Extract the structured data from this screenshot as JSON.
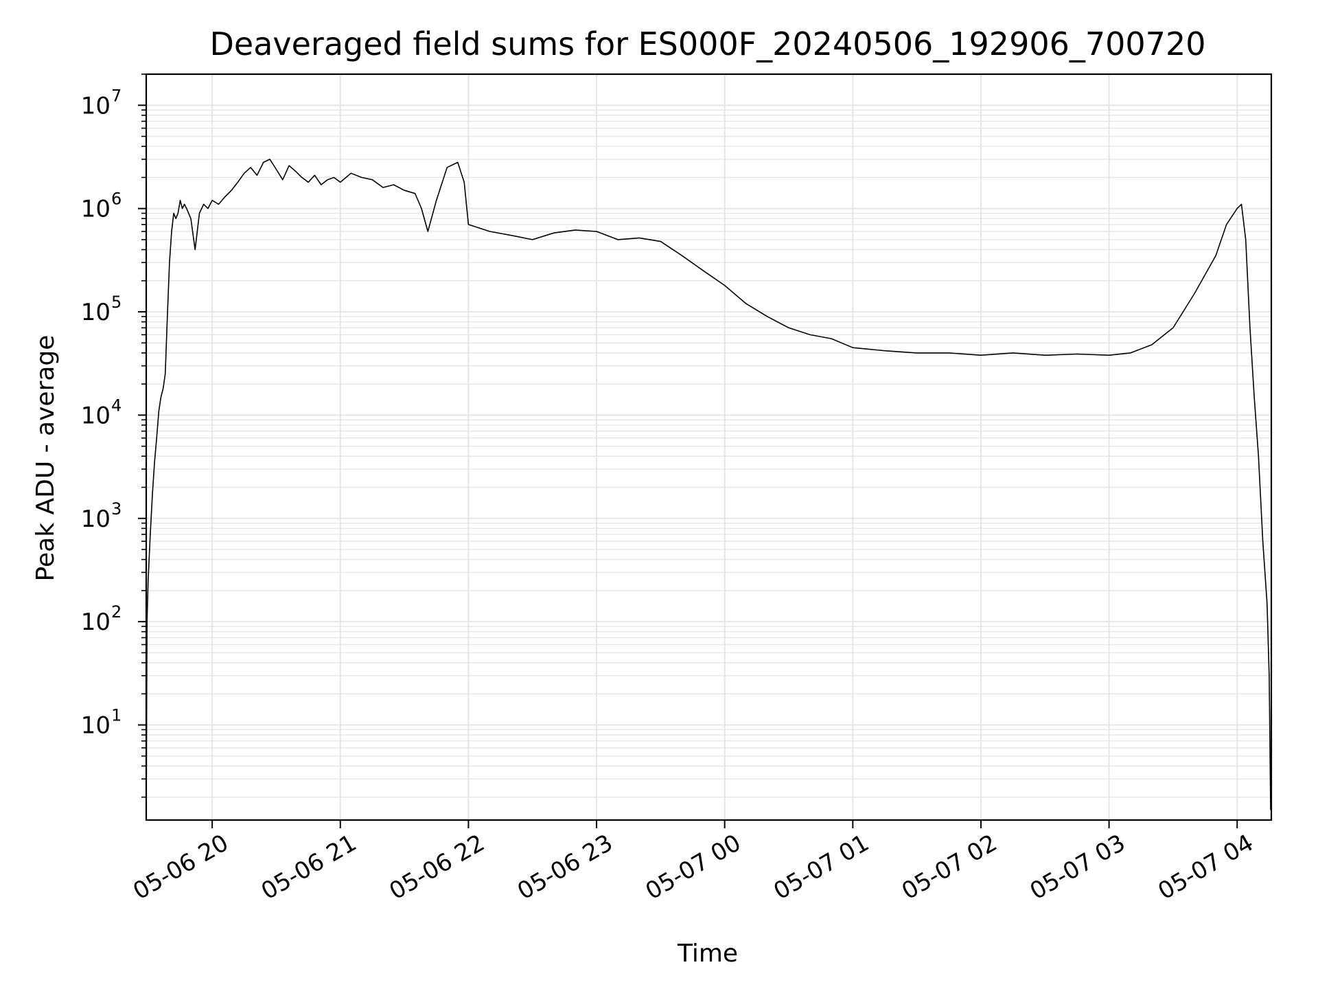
{
  "chart_data": {
    "type": "line",
    "title": "Deaveraged field sums for ES000F_20240506_192906_700720",
    "xlabel": "Time",
    "ylabel": "Peak ADU - average",
    "yscale": "log",
    "ylim": [
      1.2,
      20000000
    ],
    "xlim": [
      "2024-05-06T19:29:06",
      "2024-05-07T04:16:00"
    ],
    "grid": true,
    "line_color": "#000000",
    "grid_color": "#e5e5e5",
    "x_ticks": [
      {
        "value": "2024-05-06T20:00:00",
        "label": "05-06 20"
      },
      {
        "value": "2024-05-06T21:00:00",
        "label": "05-06 21"
      },
      {
        "value": "2024-05-06T22:00:00",
        "label": "05-06 22"
      },
      {
        "value": "2024-05-06T23:00:00",
        "label": "05-06 23"
      },
      {
        "value": "2024-05-07T00:00:00",
        "label": "05-07 00"
      },
      {
        "value": "2024-05-07T01:00:00",
        "label": "05-07 01"
      },
      {
        "value": "2024-05-07T02:00:00",
        "label": "05-07 02"
      },
      {
        "value": "2024-05-07T03:00:00",
        "label": "05-07 03"
      },
      {
        "value": "2024-05-07T04:00:00",
        "label": "05-07 04"
      }
    ],
    "y_ticks": [
      {
        "value": 10,
        "base": "10",
        "exp": "1"
      },
      {
        "value": 100,
        "base": "10",
        "exp": "2"
      },
      {
        "value": 1000,
        "base": "10",
        "exp": "3"
      },
      {
        "value": 10000,
        "base": "10",
        "exp": "4"
      },
      {
        "value": 100000,
        "base": "10",
        "exp": "5"
      },
      {
        "value": 1000000,
        "base": "10",
        "exp": "6"
      },
      {
        "value": 10000000,
        "base": "10",
        "exp": "7"
      }
    ],
    "series": [
      {
        "x": [
          "2024-05-06T19:29:06",
          "2024-05-06T19:29:30",
          "2024-05-06T19:30:00",
          "2024-05-06T19:31:00",
          "2024-05-06T19:32:00",
          "2024-05-06T19:33:00",
          "2024-05-06T19:34:00",
          "2024-05-06T19:35:00",
          "2024-05-06T19:36:00",
          "2024-05-06T19:37:00",
          "2024-05-06T19:38:00",
          "2024-05-06T19:39:00",
          "2024-05-06T19:40:00",
          "2024-05-06T19:41:00",
          "2024-05-06T19:42:00",
          "2024-05-06T19:43:00",
          "2024-05-06T19:44:00",
          "2024-05-06T19:45:00",
          "2024-05-06T19:46:00",
          "2024-05-06T19:47:00",
          "2024-05-06T19:48:00",
          "2024-05-06T19:50:00",
          "2024-05-06T19:52:00",
          "2024-05-06T19:54:00",
          "2024-05-06T19:56:00",
          "2024-05-06T19:58:00",
          "2024-05-06T20:00:00",
          "2024-05-06T20:03:00",
          "2024-05-06T20:06:00",
          "2024-05-06T20:09:00",
          "2024-05-06T20:12:00",
          "2024-05-06T20:15:00",
          "2024-05-06T20:18:00",
          "2024-05-06T20:21:00",
          "2024-05-06T20:24:00",
          "2024-05-06T20:27:00",
          "2024-05-06T20:30:00",
          "2024-05-06T20:33:00",
          "2024-05-06T20:36:00",
          "2024-05-06T20:39:00",
          "2024-05-06T20:42:00",
          "2024-05-06T20:45:00",
          "2024-05-06T20:48:00",
          "2024-05-06T20:51:00",
          "2024-05-06T20:54:00",
          "2024-05-06T20:57:00",
          "2024-05-06T21:00:00",
          "2024-05-06T21:05:00",
          "2024-05-06T21:10:00",
          "2024-05-06T21:15:00",
          "2024-05-06T21:20:00",
          "2024-05-06T21:25:00",
          "2024-05-06T21:30:00",
          "2024-05-06T21:35:00",
          "2024-05-06T21:38:00",
          "2024-05-06T21:41:00",
          "2024-05-06T21:45:00",
          "2024-05-06T21:50:00",
          "2024-05-06T21:55:00",
          "2024-05-06T21:58:00",
          "2024-05-06T22:00:00",
          "2024-05-06T22:10:00",
          "2024-05-06T22:20:00",
          "2024-05-06T22:30:00",
          "2024-05-06T22:40:00",
          "2024-05-06T22:50:00",
          "2024-05-06T23:00:00",
          "2024-05-06T23:10:00",
          "2024-05-06T23:20:00",
          "2024-05-06T23:30:00",
          "2024-05-06T23:40:00",
          "2024-05-06T23:50:00",
          "2024-05-07T00:00:00",
          "2024-05-07T00:10:00",
          "2024-05-07T00:20:00",
          "2024-05-07T00:30:00",
          "2024-05-07T00:40:00",
          "2024-05-07T00:50:00",
          "2024-05-07T01:00:00",
          "2024-05-07T01:15:00",
          "2024-05-07T01:30:00",
          "2024-05-07T01:45:00",
          "2024-05-07T02:00:00",
          "2024-05-07T02:15:00",
          "2024-05-07T02:30:00",
          "2024-05-07T02:45:00",
          "2024-05-07T03:00:00",
          "2024-05-07T03:10:00",
          "2024-05-07T03:20:00",
          "2024-05-07T03:30:00",
          "2024-05-07T03:40:00",
          "2024-05-07T03:50:00",
          "2024-05-07T03:55:00",
          "2024-05-07T04:00:00",
          "2024-05-07T04:02:00",
          "2024-05-07T04:04:00",
          "2024-05-07T04:06:00",
          "2024-05-07T04:08:00",
          "2024-05-07T04:10:00",
          "2024-05-07T04:12:00",
          "2024-05-07T04:14:00",
          "2024-05-07T04:15:00",
          "2024-05-07T04:15:40"
        ],
        "y": [
          1.3,
          100,
          250,
          700,
          1700,
          3500,
          6000,
          11000,
          15000,
          18000,
          25000,
          90000,
          300000,
          600000,
          900000,
          800000,
          900000,
          1200000,
          1000000,
          1100000,
          1000000,
          800000,
          400000,
          900000,
          1100000,
          1000000,
          1200000,
          1100000,
          1300000,
          1500000,
          1800000,
          2200000,
          2500000,
          2100000,
          2800000,
          3000000,
          2400000,
          1900000,
          2600000,
          2300000,
          2000000,
          1800000,
          2100000,
          1700000,
          1900000,
          2000000,
          1800000,
          2200000,
          2000000,
          1900000,
          1600000,
          1700000,
          1500000,
          1400000,
          1000000,
          600000,
          1200000,
          2500000,
          2800000,
          1800000,
          700000,
          600000,
          550000,
          500000,
          580000,
          620000,
          600000,
          500000,
          520000,
          480000,
          350000,
          250000,
          180000,
          120000,
          90000,
          70000,
          60000,
          55000,
          45000,
          42000,
          40000,
          40000,
          38000,
          40000,
          38000,
          39000,
          38000,
          40000,
          48000,
          70000,
          150000,
          350000,
          700000,
          1000000,
          1100000,
          500000,
          70000,
          15000,
          4000,
          600,
          150,
          30,
          1.5
        ]
      }
    ]
  }
}
